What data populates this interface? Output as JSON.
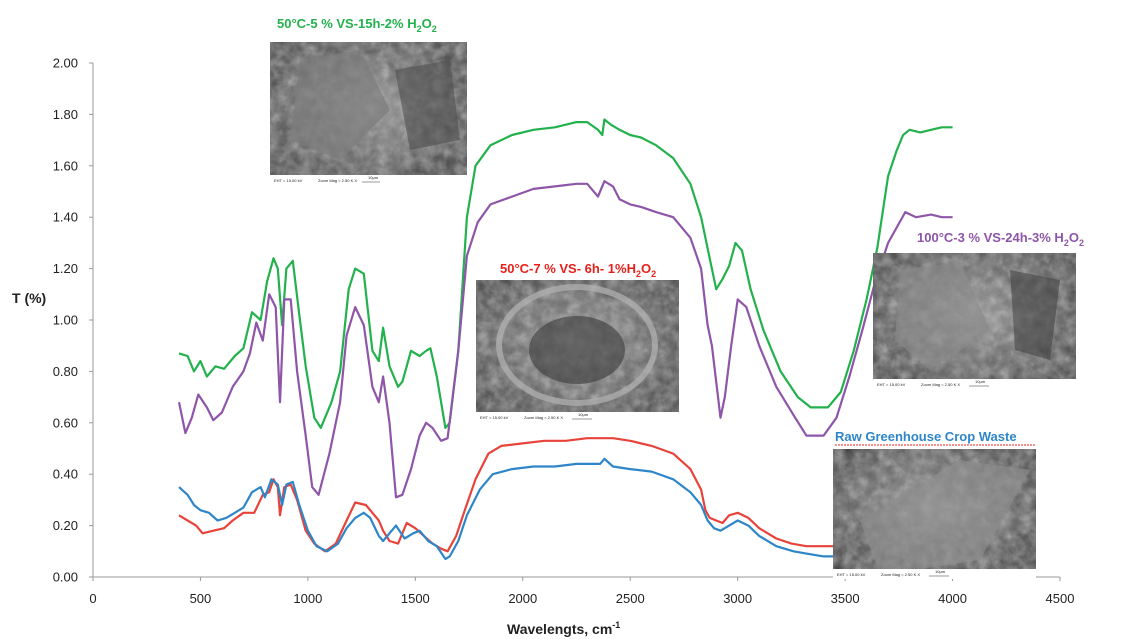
{
  "chart_data": {
    "type": "line",
    "xlabel": "Wavelengts, cm",
    "xlabel_sup": "-1",
    "ylabel": "T (%)",
    "xlim": [
      0,
      4500
    ],
    "ylim": [
      0,
      2
    ],
    "x_ticks": [
      "0",
      "500",
      "1000",
      "1500",
      "2000",
      "2500",
      "3000",
      "3500",
      "4000",
      "4500"
    ],
    "y_ticks": [
      "0.00",
      "0.20",
      "0.40",
      "0.60",
      "0.80",
      "1.00",
      "1.20",
      "1.40",
      "1.60",
      "1.80",
      "2.00"
    ],
    "grid": false,
    "series": [
      {
        "name": "50°C-5 % VS-15h-2% H2O2",
        "color": "#22b14c",
        "points": [
          [
            400,
            0.87
          ],
          [
            440,
            0.86
          ],
          [
            470,
            0.8
          ],
          [
            500,
            0.84
          ],
          [
            530,
            0.78
          ],
          [
            570,
            0.82
          ],
          [
            610,
            0.81
          ],
          [
            660,
            0.86
          ],
          [
            700,
            0.89
          ],
          [
            740,
            1.03
          ],
          [
            780,
            1.0
          ],
          [
            810,
            1.15
          ],
          [
            840,
            1.24
          ],
          [
            860,
            1.2
          ],
          [
            880,
            0.98
          ],
          [
            900,
            1.2
          ],
          [
            930,
            1.23
          ],
          [
            960,
            1.02
          ],
          [
            990,
            0.82
          ],
          [
            1030,
            0.62
          ],
          [
            1060,
            0.58
          ],
          [
            1110,
            0.68
          ],
          [
            1150,
            0.8
          ],
          [
            1190,
            1.12
          ],
          [
            1220,
            1.2
          ],
          [
            1260,
            1.18
          ],
          [
            1300,
            0.88
          ],
          [
            1330,
            0.84
          ],
          [
            1350,
            0.97
          ],
          [
            1380,
            0.82
          ],
          [
            1420,
            0.74
          ],
          [
            1440,
            0.76
          ],
          [
            1480,
            0.88
          ],
          [
            1520,
            0.86
          ],
          [
            1550,
            0.88
          ],
          [
            1570,
            0.89
          ],
          [
            1600,
            0.78
          ],
          [
            1640,
            0.58
          ],
          [
            1660,
            0.6
          ],
          [
            1700,
            0.88
          ],
          [
            1740,
            1.4
          ],
          [
            1780,
            1.6
          ],
          [
            1850,
            1.68
          ],
          [
            1950,
            1.72
          ],
          [
            2050,
            1.74
          ],
          [
            2150,
            1.75
          ],
          [
            2250,
            1.77
          ],
          [
            2300,
            1.77
          ],
          [
            2350,
            1.74
          ],
          [
            2370,
            1.72
          ],
          [
            2380,
            1.78
          ],
          [
            2410,
            1.76
          ],
          [
            2450,
            1.74
          ],
          [
            2500,
            1.72
          ],
          [
            2550,
            1.71
          ],
          [
            2620,
            1.68
          ],
          [
            2700,
            1.63
          ],
          [
            2780,
            1.53
          ],
          [
            2830,
            1.4
          ],
          [
            2870,
            1.24
          ],
          [
            2900,
            1.12
          ],
          [
            2930,
            1.16
          ],
          [
            2960,
            1.21
          ],
          [
            2990,
            1.3
          ],
          [
            3020,
            1.27
          ],
          [
            3060,
            1.12
          ],
          [
            3120,
            0.96
          ],
          [
            3200,
            0.8
          ],
          [
            3280,
            0.7
          ],
          [
            3340,
            0.66
          ],
          [
            3420,
            0.66
          ],
          [
            3480,
            0.72
          ],
          [
            3540,
            0.88
          ],
          [
            3600,
            1.08
          ],
          [
            3650,
            1.28
          ],
          [
            3700,
            1.56
          ],
          [
            3740,
            1.66
          ],
          [
            3770,
            1.72
          ],
          [
            3800,
            1.74
          ],
          [
            3850,
            1.73
          ],
          [
            3900,
            1.74
          ],
          [
            3950,
            1.75
          ],
          [
            4000,
            1.75
          ]
        ]
      },
      {
        "name": "100°C-3 % VS-24h-3% H2O2",
        "color": "#8e55a8",
        "points": [
          [
            400,
            0.68
          ],
          [
            430,
            0.56
          ],
          [
            460,
            0.62
          ],
          [
            490,
            0.71
          ],
          [
            530,
            0.66
          ],
          [
            560,
            0.61
          ],
          [
            600,
            0.64
          ],
          [
            650,
            0.74
          ],
          [
            700,
            0.8
          ],
          [
            730,
            0.87
          ],
          [
            760,
            0.99
          ],
          [
            790,
            0.92
          ],
          [
            820,
            1.1
          ],
          [
            850,
            1.05
          ],
          [
            870,
            0.68
          ],
          [
            890,
            1.08
          ],
          [
            920,
            1.08
          ],
          [
            950,
            0.8
          ],
          [
            990,
            0.55
          ],
          [
            1020,
            0.35
          ],
          [
            1050,
            0.32
          ],
          [
            1100,
            0.48
          ],
          [
            1150,
            0.68
          ],
          [
            1180,
            0.94
          ],
          [
            1220,
            1.05
          ],
          [
            1260,
            0.98
          ],
          [
            1300,
            0.74
          ],
          [
            1330,
            0.68
          ],
          [
            1350,
            0.78
          ],
          [
            1380,
            0.6
          ],
          [
            1410,
            0.31
          ],
          [
            1440,
            0.32
          ],
          [
            1480,
            0.42
          ],
          [
            1520,
            0.55
          ],
          [
            1550,
            0.6
          ],
          [
            1580,
            0.58
          ],
          [
            1620,
            0.53
          ],
          [
            1650,
            0.54
          ],
          [
            1700,
            0.88
          ],
          [
            1740,
            1.25
          ],
          [
            1790,
            1.38
          ],
          [
            1850,
            1.45
          ],
          [
            1950,
            1.48
          ],
          [
            2050,
            1.51
          ],
          [
            2150,
            1.52
          ],
          [
            2250,
            1.53
          ],
          [
            2300,
            1.53
          ],
          [
            2350,
            1.48
          ],
          [
            2380,
            1.54
          ],
          [
            2420,
            1.52
          ],
          [
            2450,
            1.47
          ],
          [
            2500,
            1.45
          ],
          [
            2550,
            1.44
          ],
          [
            2620,
            1.42
          ],
          [
            2700,
            1.4
          ],
          [
            2780,
            1.32
          ],
          [
            2830,
            1.2
          ],
          [
            2860,
            0.98
          ],
          [
            2880,
            0.9
          ],
          [
            2900,
            0.76
          ],
          [
            2920,
            0.62
          ],
          [
            2940,
            0.7
          ],
          [
            2970,
            0.9
          ],
          [
            3000,
            1.08
          ],
          [
            3040,
            1.05
          ],
          [
            3100,
            0.9
          ],
          [
            3180,
            0.74
          ],
          [
            3260,
            0.63
          ],
          [
            3320,
            0.55
          ],
          [
            3400,
            0.55
          ],
          [
            3460,
            0.62
          ],
          [
            3520,
            0.78
          ],
          [
            3580,
            0.96
          ],
          [
            3640,
            1.15
          ],
          [
            3700,
            1.3
          ],
          [
            3740,
            1.36
          ],
          [
            3780,
            1.42
          ],
          [
            3830,
            1.4
          ],
          [
            3900,
            1.41
          ],
          [
            3950,
            1.4
          ],
          [
            4000,
            1.4
          ]
        ]
      },
      {
        "name": "50°C-7 % VS- 6h- 1%H2O2",
        "color": "#e8433a",
        "points": [
          [
            400,
            0.24
          ],
          [
            440,
            0.22
          ],
          [
            480,
            0.2
          ],
          [
            510,
            0.17
          ],
          [
            560,
            0.18
          ],
          [
            610,
            0.19
          ],
          [
            650,
            0.22
          ],
          [
            700,
            0.25
          ],
          [
            750,
            0.25
          ],
          [
            790,
            0.32
          ],
          [
            820,
            0.33
          ],
          [
            840,
            0.38
          ],
          [
            860,
            0.35
          ],
          [
            870,
            0.24
          ],
          [
            890,
            0.35
          ],
          [
            920,
            0.36
          ],
          [
            950,
            0.3
          ],
          [
            990,
            0.18
          ],
          [
            1030,
            0.13
          ],
          [
            1080,
            0.1
          ],
          [
            1130,
            0.13
          ],
          [
            1180,
            0.22
          ],
          [
            1220,
            0.29
          ],
          [
            1270,
            0.28
          ],
          [
            1300,
            0.25
          ],
          [
            1330,
            0.22
          ],
          [
            1350,
            0.18
          ],
          [
            1380,
            0.14
          ],
          [
            1420,
            0.13
          ],
          [
            1460,
            0.21
          ],
          [
            1500,
            0.19
          ],
          [
            1540,
            0.16
          ],
          [
            1580,
            0.13
          ],
          [
            1620,
            0.11
          ],
          [
            1650,
            0.1
          ],
          [
            1690,
            0.16
          ],
          [
            1730,
            0.26
          ],
          [
            1780,
            0.38
          ],
          [
            1840,
            0.48
          ],
          [
            1900,
            0.51
          ],
          [
            2000,
            0.52
          ],
          [
            2100,
            0.53
          ],
          [
            2200,
            0.53
          ],
          [
            2300,
            0.54
          ],
          [
            2350,
            0.54
          ],
          [
            2380,
            0.54
          ],
          [
            2420,
            0.54
          ],
          [
            2500,
            0.53
          ],
          [
            2600,
            0.51
          ],
          [
            2700,
            0.48
          ],
          [
            2780,
            0.42
          ],
          [
            2830,
            0.34
          ],
          [
            2850,
            0.26
          ],
          [
            2870,
            0.23
          ],
          [
            2900,
            0.22
          ],
          [
            2930,
            0.21
          ],
          [
            2960,
            0.24
          ],
          [
            3000,
            0.25
          ],
          [
            3050,
            0.23
          ],
          [
            3100,
            0.19
          ],
          [
            3180,
            0.15
          ],
          [
            3250,
            0.13
          ],
          [
            3320,
            0.12
          ],
          [
            3400,
            0.12
          ],
          [
            3450,
            0.12
          ],
          [
            3500,
            0.13
          ]
        ]
      },
      {
        "name": "Raw Greenhouse Crop Waste",
        "color": "#2e86c9",
        "points": [
          [
            400,
            0.35
          ],
          [
            440,
            0.32
          ],
          [
            470,
            0.28
          ],
          [
            500,
            0.26
          ],
          [
            540,
            0.25
          ],
          [
            580,
            0.22
          ],
          [
            620,
            0.23
          ],
          [
            660,
            0.25
          ],
          [
            700,
            0.27
          ],
          [
            740,
            0.33
          ],
          [
            780,
            0.35
          ],
          [
            800,
            0.31
          ],
          [
            830,
            0.38
          ],
          [
            860,
            0.36
          ],
          [
            880,
            0.28
          ],
          [
            900,
            0.36
          ],
          [
            930,
            0.37
          ],
          [
            960,
            0.28
          ],
          [
            1000,
            0.18
          ],
          [
            1040,
            0.12
          ],
          [
            1090,
            0.1
          ],
          [
            1140,
            0.13
          ],
          [
            1180,
            0.19
          ],
          [
            1220,
            0.23
          ],
          [
            1260,
            0.25
          ],
          [
            1290,
            0.23
          ],
          [
            1330,
            0.16
          ],
          [
            1350,
            0.14
          ],
          [
            1380,
            0.17
          ],
          [
            1410,
            0.2
          ],
          [
            1450,
            0.15
          ],
          [
            1490,
            0.17
          ],
          [
            1520,
            0.18
          ],
          [
            1560,
            0.14
          ],
          [
            1600,
            0.12
          ],
          [
            1640,
            0.07
          ],
          [
            1660,
            0.08
          ],
          [
            1700,
            0.14
          ],
          [
            1740,
            0.24
          ],
          [
            1800,
            0.34
          ],
          [
            1860,
            0.4
          ],
          [
            1950,
            0.42
          ],
          [
            2050,
            0.43
          ],
          [
            2150,
            0.43
          ],
          [
            2250,
            0.44
          ],
          [
            2300,
            0.44
          ],
          [
            2360,
            0.44
          ],
          [
            2380,
            0.46
          ],
          [
            2420,
            0.43
          ],
          [
            2500,
            0.42
          ],
          [
            2600,
            0.41
          ],
          [
            2700,
            0.38
          ],
          [
            2780,
            0.33
          ],
          [
            2830,
            0.28
          ],
          [
            2860,
            0.22
          ],
          [
            2890,
            0.19
          ],
          [
            2920,
            0.18
          ],
          [
            2960,
            0.2
          ],
          [
            3000,
            0.22
          ],
          [
            3050,
            0.2
          ],
          [
            3100,
            0.16
          ],
          [
            3180,
            0.12
          ],
          [
            3260,
            0.1
          ],
          [
            3330,
            0.09
          ],
          [
            3400,
            0.08
          ],
          [
            3460,
            0.08
          ],
          [
            3520,
            0.09
          ]
        ]
      }
    ]
  },
  "insets": [
    {
      "label": "50°C-5 % VS-15h-2% H",
      "sub": "2",
      "label_tail": "O",
      "sub2": "2",
      "color": "#22b14c",
      "micrograph": {
        "info1": "EHT = 15.00 kV",
        "info2": "Zoom Mag =   2.50 K X",
        "scale": "10μm"
      }
    },
    {
      "label": "50°C-7 % VS- 6h- 1%H",
      "sub": "2",
      "label_tail": "O",
      "sub2": "2",
      "color": "#e8201b",
      "micrograph": {
        "info1": "EHT = 15.00 kV",
        "info2": "Zoom Mag =   2.50 K X",
        "scale": "10μm"
      }
    },
    {
      "label": "100°C-3 % VS-24h-3% H",
      "sub": "2",
      "label_tail": "O",
      "sub2": "2",
      "color": "#8e55a8",
      "micrograph": {
        "info1": "EHT = 15.00 kV",
        "info2": "Zoom Mag =   2.50 K X",
        "scale": "10μm"
      }
    },
    {
      "label": "Raw Greenhouse Crop Waste",
      "color": "#2e86c9",
      "micrograph": {
        "info1": "EHT = 15.00 kV",
        "info2": "Zoom Mag =   2.50 K X",
        "scale": "10μm"
      }
    }
  ]
}
